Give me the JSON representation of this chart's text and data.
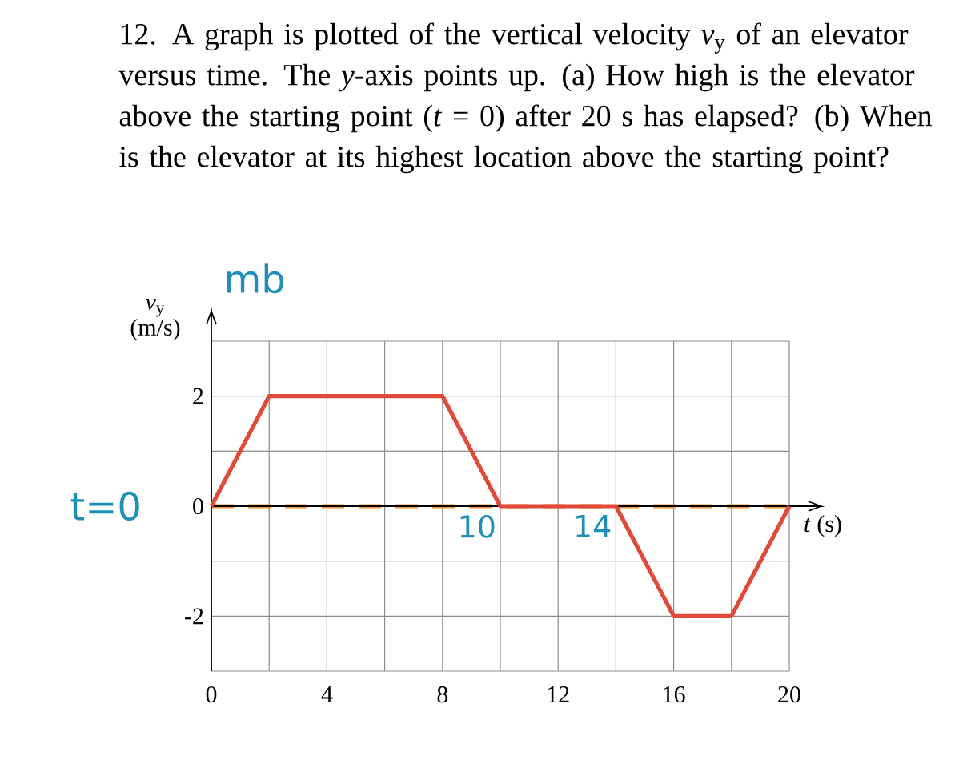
{
  "chart_data": {
    "type": "line",
    "title": "12. A graph is plotted of the vertical velocity *v*$_{y}$ of an elevator versus time. The *y*-axis points up. (a) How high is the elevator above the starting point (*t* = 0) after 20 s has elapsed? (b) When is the elevator at its highest location above the starting point?",
    "xlabel": "*t* (s)",
    "ylabel": "*v*$_{y}$ (m/s)",
    "x": [
      0,
      2,
      8,
      10,
      14,
      16,
      18,
      20
    ],
    "series": [
      {
        "color": "#e04a3a",
        "values": [
          0,
          2,
          2,
          0,
          0,
          -2,
          -2,
          0
        ]
      }
    ],
    "xlim": [
      0,
      20
    ],
    "ylim": [
      -3,
      3
    ],
    "xticks": [
      0,
      {
        "value": 2,
        "label": null
      },
      4,
      {
        "value": 6,
        "label": null
      },
      8,
      {
        "value": 10,
        "label": null
      },
      12,
      {
        "value": 14,
        "label": null
      },
      16,
      {
        "value": 18,
        "label": null
      },
      20
    ],
    "yticks": [
      {
        "value": -3,
        "label": null
      },
      -2,
      {
        "value": -1,
        "label": null
      },
      0,
      {
        "value": 1,
        "label": null
      },
      2,
      {
        "value": 3,
        "label": null
      }
    ],
    "grid": true,
    "marker": "none",
    "line_style": "solid",
    "ref_lines": [
      {
        "axis": "y",
        "value": 0,
        "color": "#f0903a",
        "line_style": "dashed"
      }
    ],
    "annotations": [
      "mb",
      {
        "text": "t=0",
        "x": 0,
        "y": 0
      },
      {
        "text": "10",
        "x": 10,
        "y": 0
      },
      {
        "text": "14",
        "x": 14,
        "y": 0
      }
    ]
  }
}
